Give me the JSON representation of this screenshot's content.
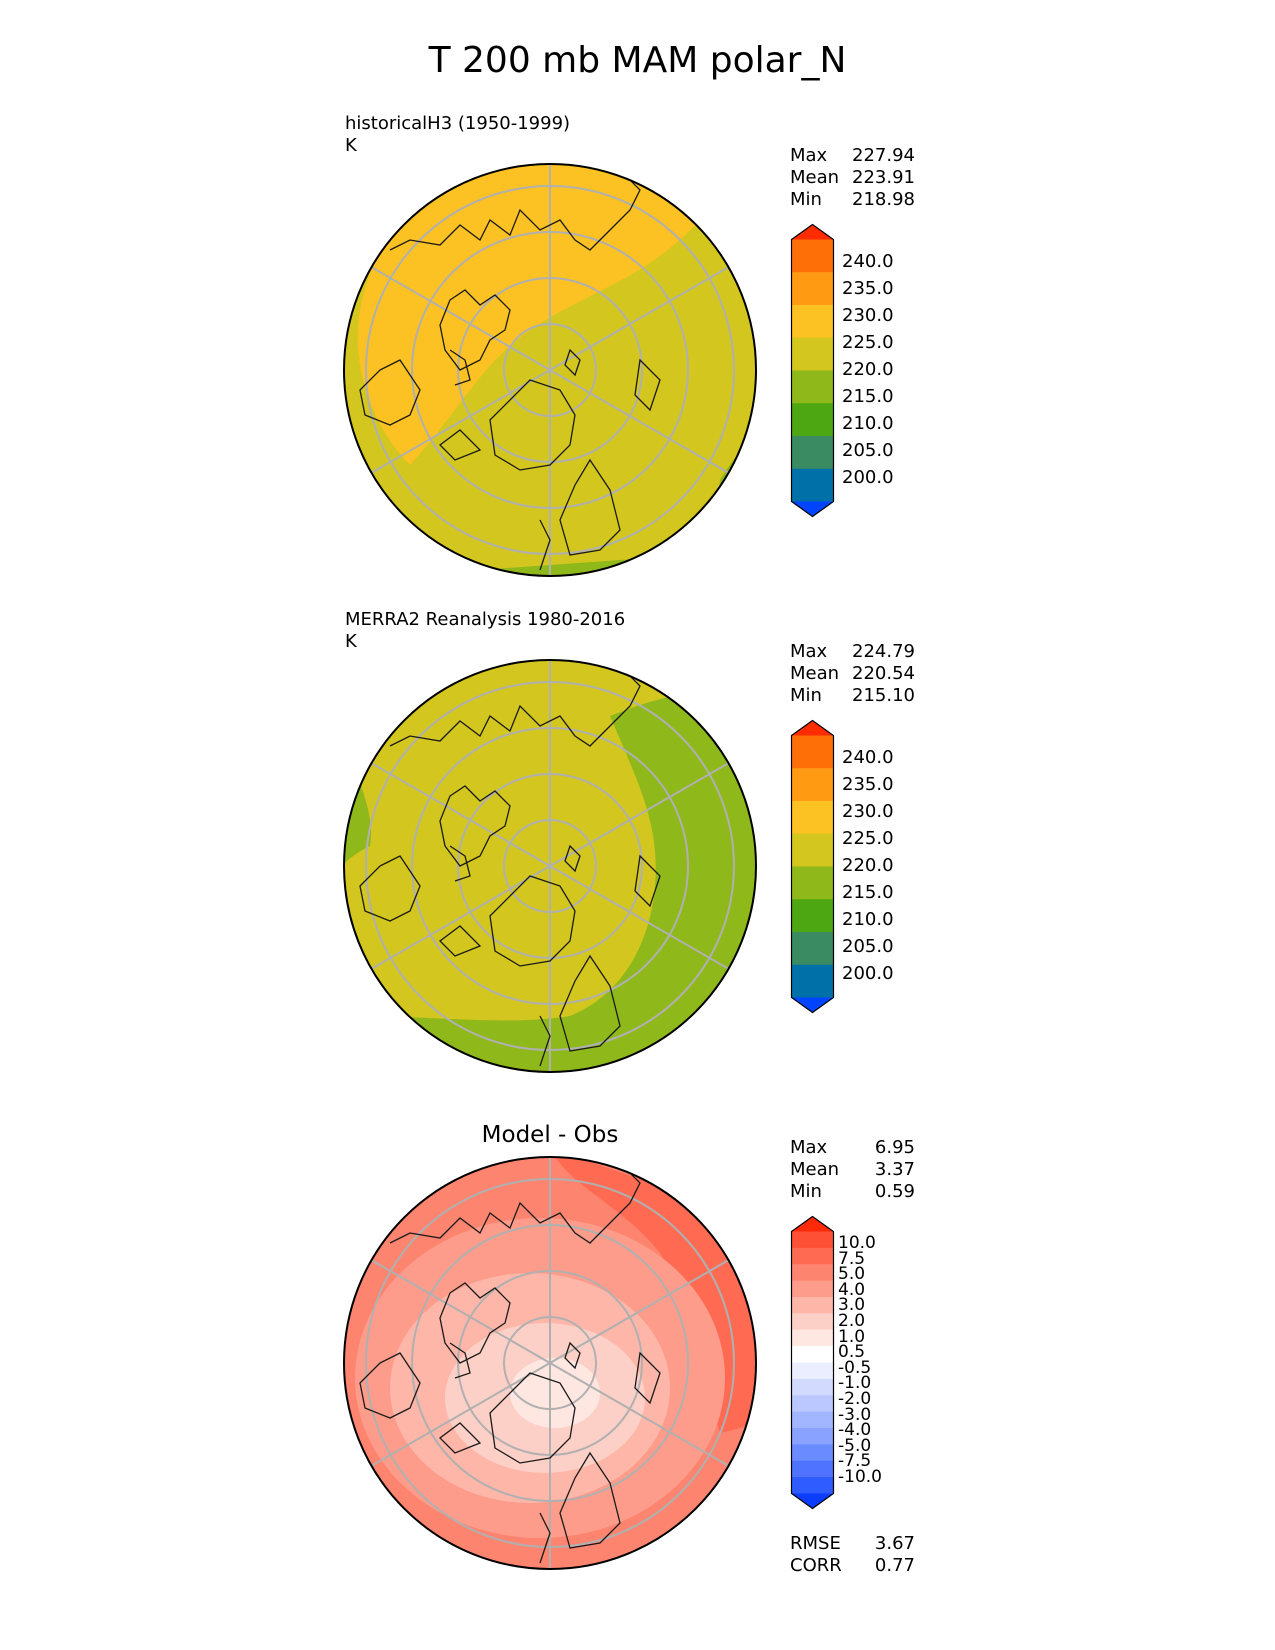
{
  "figure": {
    "title": "T 200 mb MAM polar_N"
  },
  "colors": {
    "abs_scale": [
      "#0044ff",
      "#0071a8",
      "#3a8a62",
      "#4ca713",
      "#8fb81a",
      "#d2c61f",
      "#fcc122",
      "#ff9a12",
      "#ff6f08",
      "#ff2c00"
    ],
    "diff_scale": [
      "#0a3dfc",
      "#2e5cff",
      "#4f73ff",
      "#6a8bff",
      "#8aa2ff",
      "#a2b5ff",
      "#bac8ff",
      "#d2dafe",
      "#ebeefe",
      "#ffffff",
      "#fee6e1",
      "#fdd0c7",
      "#fdb6a8",
      "#fd9c8a",
      "#fd846f",
      "#fe6b52",
      "#fe5034",
      "#ff2a0a"
    ],
    "grid": "#b0b0b0",
    "coast": "#1a1a1a"
  },
  "panels": [
    {
      "id": "model",
      "title": "historicalH3 (1950-1999)",
      "units": "K",
      "stats": {
        "max_label": "Max",
        "max": "227.94",
        "mean_label": "Mean",
        "mean": "223.91",
        "min_label": "Min",
        "min": "218.98"
      },
      "colorbar_ticks": [
        "240.0",
        "235.0",
        "230.0",
        "225.0",
        "220.0",
        "215.0",
        "210.0",
        "205.0",
        "200.0"
      ],
      "field": {
        "base": "#d2c61f",
        "warm_band": "#fcc122",
        "cool_band": "#8fb81a"
      }
    },
    {
      "id": "obs",
      "title": "MERRA2 Reanalysis 1980-2016",
      "units": "K",
      "stats": {
        "max_label": "Max",
        "max": "224.79",
        "mean_label": "Mean",
        "mean": "220.54",
        "min_label": "Min",
        "min": "215.10"
      },
      "colorbar_ticks": [
        "240.0",
        "235.0",
        "230.0",
        "225.0",
        "220.0",
        "215.0",
        "210.0",
        "205.0",
        "200.0"
      ],
      "field": {
        "base": "#d2c61f",
        "cool_band": "#8fb81a"
      }
    },
    {
      "id": "diff",
      "title": "Model - Obs",
      "stats": {
        "max_label": "Max",
        "max": "6.95",
        "mean_label": "Mean",
        "mean": "3.37",
        "min_label": "Min",
        "min": "0.59"
      },
      "colorbar_ticks": [
        "10.0",
        "7.5",
        "5.0",
        "4.0",
        "3.0",
        "2.0",
        "1.0",
        "0.5",
        "-0.5",
        "-1.0",
        "-2.0",
        "-3.0",
        "-4.0",
        "-5.0",
        "-7.5",
        "-10.0"
      ],
      "metrics": {
        "rmse_label": "RMSE",
        "rmse": "3.67",
        "corr_label": "CORR",
        "corr": "0.77"
      }
    }
  ]
}
